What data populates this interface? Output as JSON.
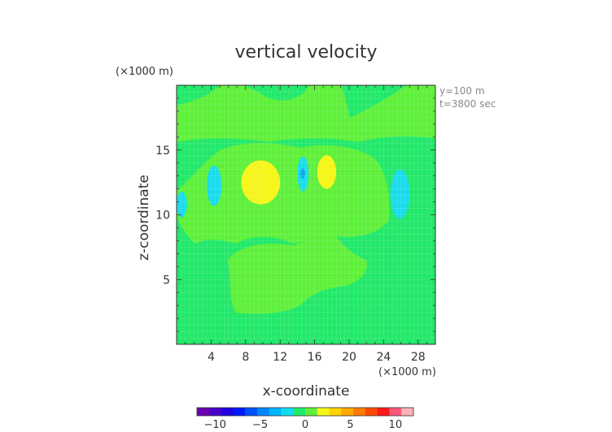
{
  "chart_data": {
    "type": "heatmap",
    "title": "vertical velocity",
    "xlabel": "x-coordinate",
    "ylabel": "z-coordinate",
    "x_unit": "(×1000 m)",
    "y_unit": "(×1000 m)",
    "xlim": [
      0,
      30
    ],
    "ylim": [
      0,
      20
    ],
    "x_ticks": [
      4,
      8,
      12,
      16,
      20,
      24,
      28
    ],
    "y_ticks": [
      5,
      10,
      15
    ],
    "annotations": [
      "y=100 m",
      "t=3800 sec"
    ],
    "grid": true,
    "background_level_color": "#22e86a",
    "contour_regions": [
      {
        "level": "0 to 2",
        "color": "#5ef03a",
        "kind": "band_top",
        "note": "upper green band"
      },
      {
        "level": "0 to 2",
        "color": "#5ef03a",
        "kind": "mid_region"
      },
      {
        "level": "0 to 2",
        "color": "#5ef03a",
        "kind": "lower_region"
      },
      {
        "level": "2 to 4",
        "color": "#f5f519",
        "x": [
          7.5,
          12
        ],
        "y": [
          10.8,
          14.2
        ]
      },
      {
        "level": "2 to 4",
        "color": "#f5f519",
        "x": [
          16.3,
          18.5
        ],
        "y": [
          12,
          14.6
        ]
      },
      {
        "level": "-2 to -4",
        "color": "#19dcec",
        "x": [
          3.5,
          5.2
        ],
        "y": [
          10.7,
          13.8
        ]
      },
      {
        "level": "-2 to -4",
        "color": "#19dcec",
        "x": [
          24.8,
          27
        ],
        "y": [
          9.7,
          13.5
        ]
      },
      {
        "level": "-2 to -4",
        "color": "#19dcec",
        "x": [
          0,
          1.2
        ],
        "y": [
          9.8,
          11.8
        ]
      },
      {
        "level": "-2 to -4",
        "color": "#19dcec",
        "x": [
          14,
          15.3
        ],
        "y": [
          11.8,
          14.5
        ]
      },
      {
        "level": "-4 to -6",
        "color": "#12a8e0",
        "x": [
          14.3,
          14.9
        ],
        "y": [
          12.8,
          13.6
        ]
      }
    ],
    "colorbar": {
      "min": -12,
      "max": 12,
      "tick_labels": [
        "−10",
        "−5",
        "0",
        "5",
        "10"
      ],
      "tick_values": [
        -10,
        -5,
        0,
        5,
        10
      ],
      "colors": [
        "#6a00b0",
        "#4a00c8",
        "#2200e0",
        "#0018ff",
        "#0050ff",
        "#0086ff",
        "#00b4ff",
        "#12dcf0",
        "#22e86a",
        "#5ef03a",
        "#f5f519",
        "#ffd400",
        "#ffa800",
        "#ff7c00",
        "#ff4a00",
        "#ff1a1a",
        "#ff5a7a",
        "#ffb0b8"
      ]
    }
  }
}
